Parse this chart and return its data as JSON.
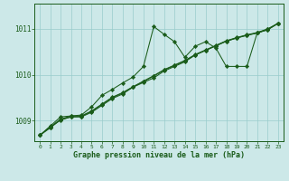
{
  "title": "Graphe pression niveau de la mer (hPa)",
  "bg_color": "#cce8e8",
  "grid_color": "#99cccc",
  "line_color": "#1a5c1a",
  "marker_color": "#1a5c1a",
  "xlim": [
    -0.5,
    23.5
  ],
  "ylim": [
    1008.55,
    1011.55
  ],
  "yticks": [
    1009,
    1010,
    1011
  ],
  "xticks": [
    0,
    1,
    2,
    3,
    4,
    5,
    6,
    7,
    8,
    9,
    10,
    11,
    12,
    13,
    14,
    15,
    16,
    17,
    18,
    19,
    20,
    21,
    22,
    23
  ],
  "series1": [
    1008.68,
    1008.88,
    1009.08,
    1009.1,
    1009.12,
    1009.3,
    1009.55,
    1009.68,
    1009.82,
    1009.95,
    1010.18,
    1011.05,
    1010.88,
    1010.72,
    1010.38,
    1010.62,
    1010.72,
    1010.58,
    1010.18,
    1010.18,
    1010.18,
    1010.92,
    1010.98,
    1011.12
  ],
  "series2": [
    1008.68,
    1008.84,
    1009.02,
    1009.08,
    1009.08,
    1009.18,
    1009.33,
    1009.48,
    1009.58,
    1009.73,
    1009.83,
    1009.93,
    1010.08,
    1010.18,
    1010.28,
    1010.43,
    1010.53,
    1010.63,
    1010.73,
    1010.8,
    1010.86,
    1010.91,
    1010.98,
    1011.12
  ],
  "series3": [
    1008.68,
    1008.86,
    1009.03,
    1009.1,
    1009.1,
    1009.21,
    1009.36,
    1009.51,
    1009.61,
    1009.74,
    1009.86,
    1009.98,
    1010.11,
    1010.21,
    1010.31,
    1010.44,
    1010.54,
    1010.64,
    1010.74,
    1010.81,
    1010.87,
    1010.92,
    1011.0,
    1011.12
  ],
  "series4": [
    1008.68,
    1008.85,
    1009.01,
    1009.08,
    1009.09,
    1009.2,
    1009.35,
    1009.5,
    1009.6,
    1009.73,
    1009.85,
    1009.97,
    1010.1,
    1010.2,
    1010.3,
    1010.43,
    1010.53,
    1010.63,
    1010.73,
    1010.8,
    1010.86,
    1010.91,
    1010.99,
    1011.12
  ]
}
